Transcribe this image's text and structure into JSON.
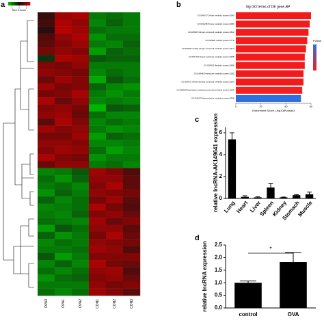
{
  "chart_data": [
    {
      "type": "heatmap",
      "label": "a",
      "legend_title": "Row Z-Score",
      "columns": [
        "OVA3",
        "OVA1",
        "OVA2",
        "CON1",
        "CON2",
        "CON3"
      ],
      "zlim": [
        -1.5,
        1.5
      ],
      "zticks": [
        -1,
        0,
        1
      ],
      "low_color": "#00c000",
      "mid_color": "#101010",
      "high_color": "#d00000",
      "values": [
        [
          0.3,
          1.1,
          1.2,
          -0.9,
          -0.8,
          -0.9
        ],
        [
          0.4,
          1.2,
          1.0,
          -1.0,
          -0.7,
          -0.9
        ],
        [
          0.2,
          1.3,
          1.1,
          -0.8,
          -0.9,
          -0.9
        ],
        [
          0.5,
          1.0,
          1.2,
          -1.1,
          -0.8,
          -0.8
        ],
        [
          0.6,
          0.9,
          1.1,
          -0.9,
          -1.0,
          -0.7
        ],
        [
          0.8,
          1.0,
          0.9,
          -1.2,
          -0.7,
          -0.8
        ],
        [
          -0.3,
          1.2,
          1.1,
          -0.6,
          -0.7,
          -0.7
        ],
        [
          0.9,
          0.8,
          1.0,
          -0.9,
          -0.9,
          -0.9
        ],
        [
          1.0,
          0.9,
          0.8,
          -1.0,
          -0.8,
          -0.9
        ],
        [
          0.7,
          1.1,
          0.9,
          -1.3,
          -0.6,
          -0.8
        ],
        [
          1.1,
          0.8,
          0.9,
          -0.7,
          -1.0,
          -1.1
        ],
        [
          0.8,
          0.9,
          1.2,
          -0.9,
          -1.1,
          -0.9
        ],
        [
          1.2,
          0.7,
          1.0,
          -1.0,
          -0.9,
          -1.0
        ],
        [
          0.9,
          1.0,
          0.8,
          -1.4,
          -0.6,
          -0.7
        ],
        [
          1.0,
          1.1,
          0.7,
          -0.8,
          -1.0,
          -1.0
        ],
        [
          0.6,
          1.2,
          0.9,
          -1.0,
          -0.8,
          -0.9
        ],
        [
          1.1,
          0.9,
          1.0,
          -0.9,
          -1.1,
          -1.0
        ],
        [
          0.8,
          0.8,
          1.1,
          -1.2,
          -0.7,
          -0.8
        ],
        [
          1.0,
          1.0,
          0.9,
          -1.0,
          -1.0,
          -0.9
        ],
        [
          0.9,
          1.1,
          1.0,
          -0.8,
          -1.2,
          -1.0
        ],
        [
          1.2,
          0.9,
          0.8,
          -1.1,
          -0.9,
          -0.9
        ],
        [
          0.7,
          1.0,
          1.0,
          -0.9,
          -0.8,
          -1.0
        ],
        [
          -1.0,
          -0.9,
          -0.6,
          1.1,
          0.9,
          0.5
        ],
        [
          -0.8,
          -1.1,
          -0.7,
          1.0,
          1.0,
          0.6
        ],
        [
          -0.9,
          -0.8,
          -1.0,
          0.9,
          1.2,
          0.6
        ],
        [
          -1.1,
          -0.7,
          -0.9,
          1.0,
          0.9,
          0.8
        ],
        [
          -0.7,
          -1.0,
          -0.8,
          0.8,
          1.1,
          0.6
        ],
        [
          -1.0,
          -0.9,
          -0.8,
          1.2,
          0.8,
          0.5
        ],
        [
          -0.9,
          -1.0,
          -0.7,
          0.9,
          1.0,
          0.7
        ],
        [
          -0.8,
          -0.9,
          -1.0,
          1.1,
          0.7,
          0.9
        ],
        [
          -1.2,
          -0.6,
          -0.8,
          1.0,
          1.0,
          0.6
        ],
        [
          -0.7,
          -1.1,
          -0.9,
          0.8,
          1.2,
          0.7
        ],
        [
          -1.0,
          -0.8,
          -0.9,
          1.0,
          0.9,
          0.8
        ],
        [
          -0.9,
          -0.9,
          -0.8,
          1.1,
          1.0,
          0.5
        ],
        [
          -0.6,
          -1.2,
          -0.9,
          0.9,
          0.9,
          0.9
        ],
        [
          -1.0,
          -0.7,
          -1.0,
          1.2,
          0.8,
          0.7
        ],
        [
          -0.8,
          -1.0,
          -0.8,
          1.0,
          1.1,
          0.5
        ],
        [
          -1.1,
          -0.8,
          -0.7,
          0.9,
          1.0,
          0.7
        ],
        [
          -0.9,
          -0.9,
          -0.9,
          1.0,
          0.8,
          0.9
        ],
        [
          -0.8,
          -1.0,
          -0.8,
          1.1,
          0.9,
          0.6
        ]
      ]
    },
    {
      "type": "hbar",
      "label": "b",
      "title": "Sig GO terms of DE gene-BP",
      "x_label": "Enrichment Score (-log10(Pvalue))",
      "legend_title": "Pvalue",
      "categories": [
        "GO:0044237 Cellular metabolic process (2060)",
        "GO:0044238 Primary metabolic process (2005)",
        "GO:0006807 Nitrogen compound metabolic process (1841)",
        "GO:0009987 Cellular process (3779)",
        "GO:0034641 Cellular nitrogen compound metabolic process (1517)",
        "GO:0071704 Organic substance metabolic process (2095)",
        "GO:0008152 Metabolic process (2408)",
        "GO:0046483 Heterocycle metabolic process (1242)",
        "GO:0006725 Cellular aromatic compound metabolic process (1257)",
        "GO:0006139 Nucleobase-containing compound metabolic process (1184)",
        "GO:0043170 Macromolecule metabolic process (2018)"
      ],
      "values": [
        60,
        59,
        58,
        57,
        56,
        55,
        55,
        54,
        54,
        53,
        52
      ],
      "colors": [
        "#f21a1a",
        "#f21a1a",
        "#f21a1a",
        "#f21a1a",
        "#f21a1a",
        "#f21a1a",
        "#f21a1a",
        "#f21a1a",
        "#f21a1a",
        "#f2201f",
        "#2f6fe0"
      ],
      "xlim": [
        0,
        60
      ],
      "xticks": [
        0,
        20,
        40,
        60
      ]
    },
    {
      "type": "bar",
      "label": "c",
      "y_label": "relative lncRNA-AK149641 expression",
      "categories": [
        "Lung",
        "Heart",
        "Liver",
        "Spleen",
        "Kidney",
        "Stomach",
        "Muscle"
      ],
      "values": [
        5.4,
        0.15,
        0.1,
        1.0,
        0.1,
        0.3,
        0.38
      ],
      "errors": [
        0.6,
        0.1,
        0.05,
        0.35,
        0.03,
        0.05,
        0.2
      ],
      "color": "#000000",
      "ylim": [
        0,
        6.5
      ],
      "yticks": [
        0,
        2,
        4,
        6
      ]
    },
    {
      "type": "bar",
      "label": "d",
      "y_label": "relative lncRNA expression",
      "annotation": "*",
      "categories": [
        "control",
        "OVA"
      ],
      "values": [
        1.0,
        1.82
      ],
      "errors": [
        0.07,
        0.38
      ],
      "color": "#000000",
      "ylim": [
        0,
        2.5
      ],
      "yticks": [
        {
          "value": 0,
          "label": "0.0"
        },
        {
          "value": 0.5,
          "label": "0.5"
        },
        {
          "value": 1,
          "label": "1.0"
        },
        {
          "value": 1.5,
          "label": "1.5"
        },
        {
          "value": 2,
          "label": "2.0"
        },
        {
          "value": 2.5,
          "label": "2.5"
        }
      ]
    }
  ]
}
